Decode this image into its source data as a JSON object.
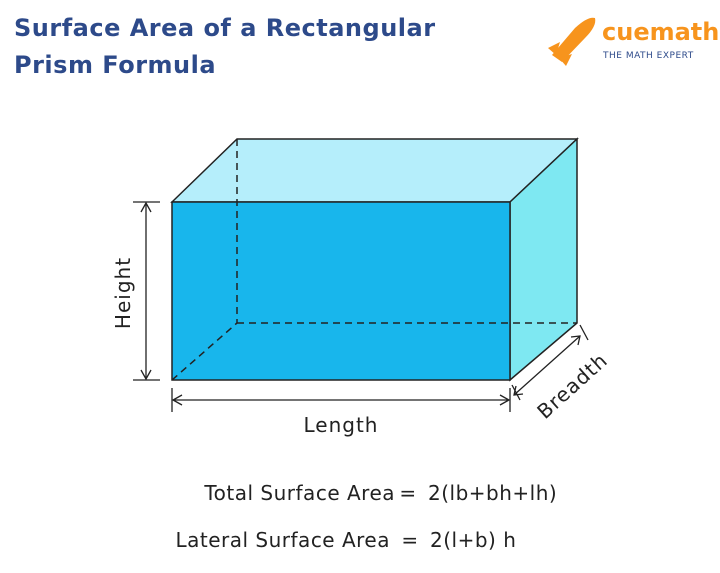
{
  "title": {
    "lines": [
      "Surface Area of a Rectangular",
      "Prism Formula"
    ]
  },
  "logo": {
    "brand": "cuemath",
    "tagline": "THE MATH EXPERT"
  },
  "labels": {
    "height": "Height",
    "length": "Length",
    "breadth": "Breadth"
  },
  "formulas": [
    {
      "name": "Total Surface Area",
      "equals": "=",
      "expression": "2(lb+bh+lh)"
    },
    {
      "name": "Lateral Surface Area",
      "equals": "=",
      "expression": "2(l+b) h"
    }
  ]
}
